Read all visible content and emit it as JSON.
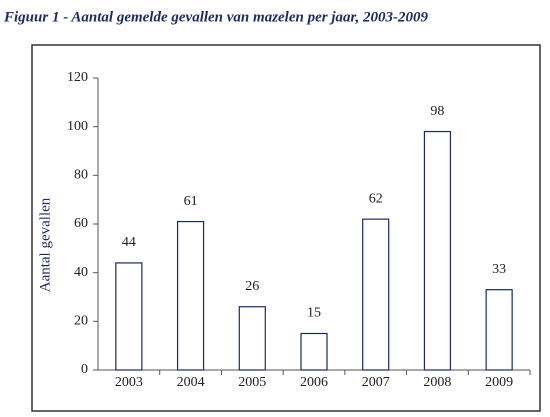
{
  "chart_data": {
    "type": "bar",
    "title": "Figuur 1 -  Aantal gemelde gevallen van mazelen per jaar, 2003-2009",
    "y_label": "Aantal gevallen",
    "categories": [
      "2003",
      "2004",
      "2005",
      "2006",
      "2007",
      "2008",
      "2009"
    ],
    "values": [
      44,
      61,
      26,
      15,
      62,
      98,
      33
    ],
    "color": "#1c2a5e",
    "ylim": [
      0,
      120
    ],
    "yticks": [
      0,
      20,
      40,
      60,
      80,
      100,
      120
    ],
    "grid": false
  }
}
